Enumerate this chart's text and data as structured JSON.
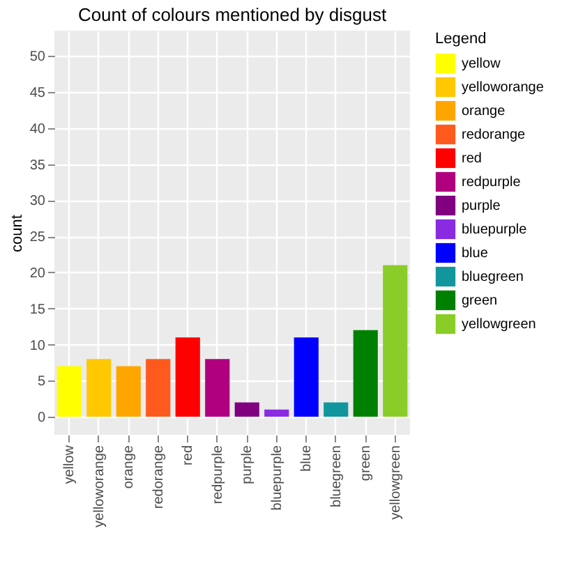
{
  "chart_data": {
    "type": "bar",
    "title": "Count of colours mentioned by disgust",
    "ylabel": "count",
    "legend_title": "Legend",
    "categories": [
      "yellow",
      "yelloworange",
      "orange",
      "redorange",
      "red",
      "redpurple",
      "purple",
      "bluepurple",
      "blue",
      "bluegreen",
      "green",
      "yellowgreen"
    ],
    "series": [
      {
        "name": "yellow",
        "color": "#ffff00",
        "values": [
          7,
          null,
          null,
          null,
          null,
          null,
          null,
          null,
          null,
          null,
          null,
          null
        ]
      },
      {
        "name": "yelloworange",
        "color": "#ffc800",
        "values": [
          null,
          8,
          null,
          null,
          null,
          null,
          null,
          null,
          null,
          null,
          null,
          null
        ]
      },
      {
        "name": "orange",
        "color": "#ffa500",
        "values": [
          null,
          null,
          7,
          null,
          null,
          null,
          null,
          null,
          null,
          null,
          null,
          null
        ]
      },
      {
        "name": "redorange",
        "color": "#ff5a1e",
        "values": [
          null,
          null,
          null,
          8,
          null,
          null,
          null,
          null,
          null,
          null,
          null,
          null
        ]
      },
      {
        "name": "red",
        "color": "#ff0000",
        "values": [
          null,
          null,
          null,
          null,
          11,
          null,
          null,
          null,
          null,
          null,
          null,
          null
        ]
      },
      {
        "name": "redpurple",
        "color": "#b0007f",
        "values": [
          null,
          null,
          null,
          null,
          null,
          8,
          null,
          null,
          null,
          null,
          null,
          null
        ]
      },
      {
        "name": "purple",
        "color": "#800080",
        "values": [
          null,
          null,
          null,
          null,
          null,
          null,
          2,
          null,
          null,
          null,
          null,
          null
        ]
      },
      {
        "name": "bluepurple",
        "color": "#8a2be2",
        "values": [
          null,
          null,
          null,
          null,
          null,
          null,
          null,
          1,
          null,
          null,
          null,
          null
        ]
      },
      {
        "name": "blue",
        "color": "#0000ff",
        "values": [
          null,
          null,
          null,
          null,
          null,
          null,
          null,
          null,
          11,
          null,
          null,
          null
        ]
      },
      {
        "name": "bluegreen",
        "color": "#11969e",
        "values": [
          null,
          null,
          null,
          null,
          null,
          null,
          null,
          null,
          null,
          2,
          null,
          null
        ]
      },
      {
        "name": "green",
        "color": "#008000",
        "values": [
          null,
          null,
          null,
          null,
          null,
          null,
          null,
          null,
          null,
          null,
          12,
          null
        ]
      },
      {
        "name": "yellowgreen",
        "color": "#8bcd28",
        "values": [
          null,
          null,
          null,
          null,
          null,
          null,
          null,
          null,
          null,
          null,
          null,
          21
        ]
      }
    ],
    "ylim": [
      -2.5,
      53.5
    ],
    "yticks": [
      0,
      5,
      10,
      15,
      20,
      25,
      30,
      35,
      40,
      45,
      50
    ],
    "grid": true,
    "legend": "right"
  }
}
